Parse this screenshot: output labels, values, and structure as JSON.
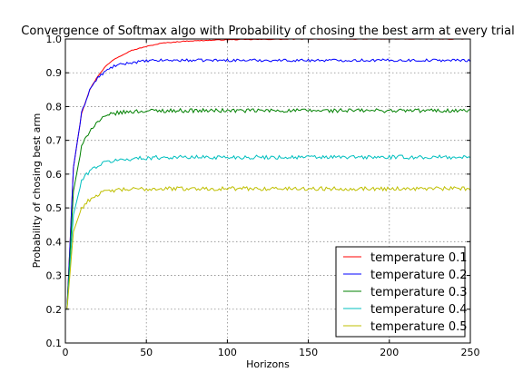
{
  "chart_data": {
    "type": "line",
    "title": "Convergence of Softmax algo with Probability of chosing the best arm at every trial",
    "xlabel": "Horizons",
    "ylabel": "Probability of chosing best arm",
    "xlim": [
      0,
      250
    ],
    "ylim": [
      0.1,
      1.0
    ],
    "x_ticks": [
      "0",
      "50",
      "100",
      "150",
      "200",
      "250"
    ],
    "y_ticks": [
      "0.1",
      "0.2",
      "0.3",
      "0.4",
      "0.5",
      "0.6",
      "0.7",
      "0.8",
      "0.9",
      "1.0"
    ],
    "grid": true,
    "legend_position": "lower-right",
    "x": [
      1,
      5,
      10,
      15,
      20,
      25,
      30,
      40,
      50,
      60,
      75,
      100,
      150,
      200,
      250
    ],
    "series": [
      {
        "name": "temperature 0.1",
        "color": "#ff0000",
        "values": [
          0.2,
          0.62,
          0.78,
          0.85,
          0.89,
          0.92,
          0.94,
          0.965,
          0.978,
          0.988,
          0.994,
          0.998,
          1.0,
          1.0,
          1.0
        ]
      },
      {
        "name": "temperature 0.2",
        "color": "#0000ff",
        "values": [
          0.2,
          0.62,
          0.78,
          0.85,
          0.885,
          0.905,
          0.92,
          0.93,
          0.935,
          0.937,
          0.937,
          0.937,
          0.937,
          0.937,
          0.937
        ]
      },
      {
        "name": "temperature 0.3",
        "color": "#008000",
        "values": [
          0.2,
          0.55,
          0.68,
          0.73,
          0.755,
          0.77,
          0.78,
          0.785,
          0.787,
          0.788,
          0.788,
          0.788,
          0.788,
          0.788,
          0.788
        ]
      },
      {
        "name": "temperature 0.4",
        "color": "#00bfbf",
        "values": [
          0.2,
          0.48,
          0.58,
          0.61,
          0.625,
          0.635,
          0.64,
          0.645,
          0.648,
          0.65,
          0.65,
          0.65,
          0.65,
          0.65,
          0.65
        ]
      },
      {
        "name": "temperature 0.5",
        "color": "#bfbf00",
        "values": [
          0.2,
          0.43,
          0.5,
          0.525,
          0.54,
          0.548,
          0.552,
          0.555,
          0.556,
          0.557,
          0.557,
          0.557,
          0.557,
          0.557,
          0.557
        ]
      }
    ]
  }
}
